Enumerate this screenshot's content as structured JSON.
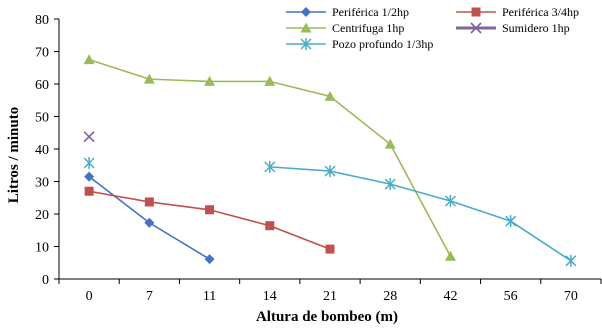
{
  "chart_data": {
    "type": "line",
    "xlabel": "Altura de bombeo (m)",
    "ylabel": "Litros / minuto",
    "categories": [
      "0",
      "7",
      "11",
      "14",
      "21",
      "28",
      "42",
      "56",
      "70"
    ],
    "ylim": [
      0,
      80
    ],
    "yticks": [
      "0",
      "10",
      "20",
      "30",
      "40",
      "50",
      "60",
      "70",
      "80"
    ],
    "grid": false,
    "legend_position": "top-right",
    "series": [
      {
        "name": "Periférica  1/2hp",
        "color": "#4472C4",
        "marker": "diamond",
        "x": [
          "0",
          "7",
          "11"
        ],
        "values": [
          31.5,
          17.3,
          6.1
        ]
      },
      {
        "name": "Periférica 3/4hp",
        "color": "#C0504D",
        "marker": "square",
        "x": [
          "0",
          "7",
          "11",
          "14",
          "21"
        ],
        "values": [
          27,
          23.7,
          21.3,
          16.4,
          9.2
        ]
      },
      {
        "name": "Centrifuga 1hp",
        "color": "#9BBB59",
        "marker": "triangle",
        "x": [
          "0",
          "7",
          "11",
          "14",
          "21",
          "28",
          "42"
        ],
        "values": [
          67.5,
          61.5,
          60.8,
          60.8,
          56.2,
          41.5,
          7
        ]
      },
      {
        "name": "Sumidero 1hp",
        "color": "#8064A2",
        "marker": "x",
        "x": [
          "0"
        ],
        "values": [
          43.8
        ]
      },
      {
        "name": "Pozo profundo 1/3hp",
        "color": "#4BACC6",
        "marker": "star",
        "segments": [
          {
            "x": [
              "0"
            ],
            "values": [
              35.7
            ]
          },
          {
            "x": [
              "14",
              "21",
              "28",
              "42",
              "56",
              "70"
            ],
            "values": [
              34.5,
              33.2,
              29.2,
              24,
              17.8,
              5.6
            ]
          }
        ]
      }
    ]
  }
}
